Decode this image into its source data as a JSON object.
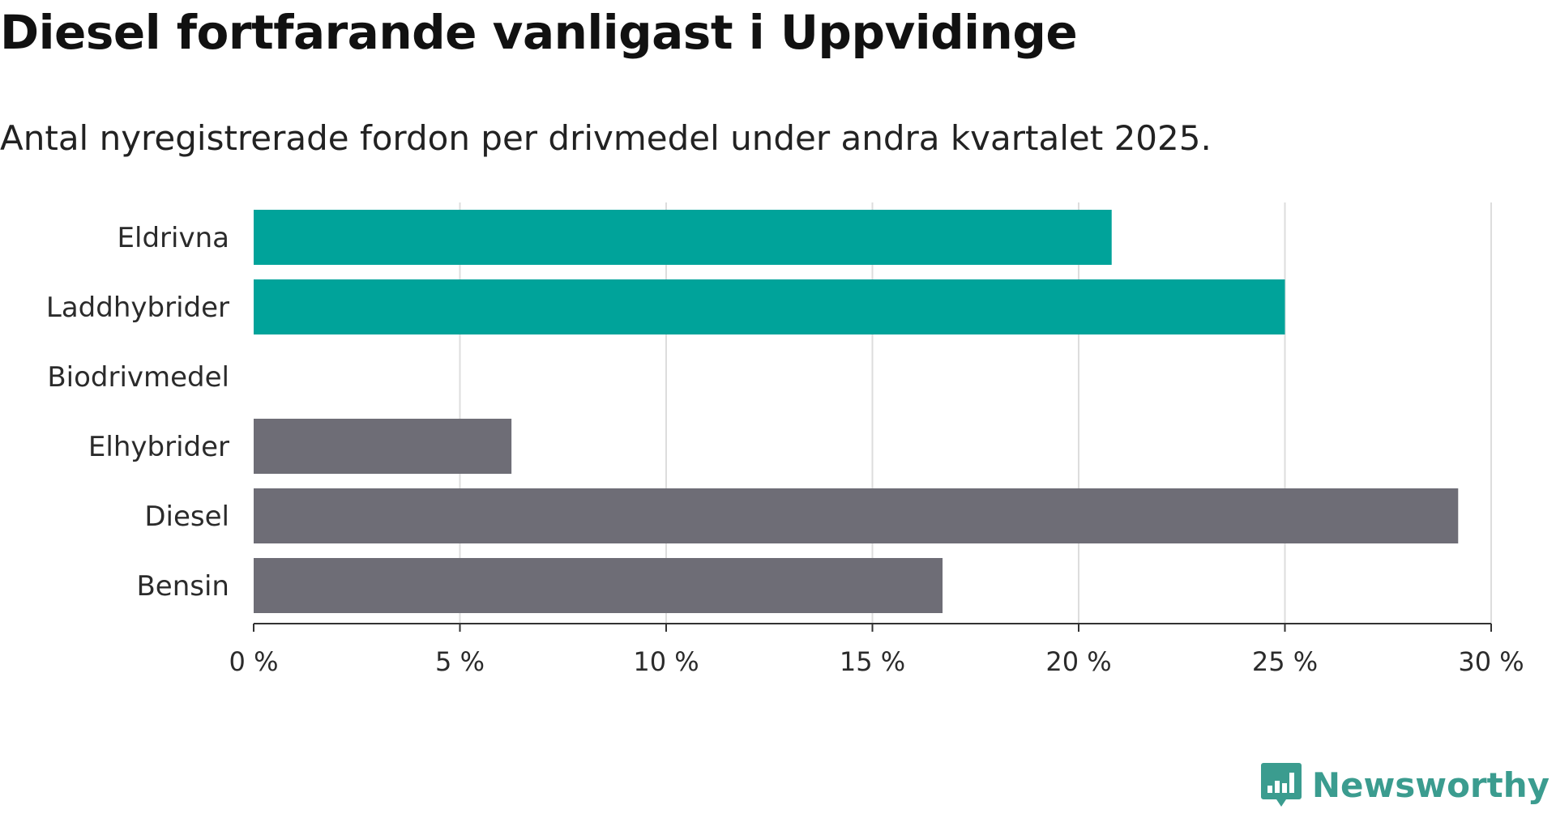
{
  "title": "Diesel fortfarande vanligast i Uppvidinge",
  "subtitle": "Antal nyregistrerade fordon per drivmedel under andra kvartalet 2025.",
  "logo": {
    "text": "Newsworthy",
    "icon": "bar-chart-speech-bubble-icon",
    "color": "#3b9c8f"
  },
  "chart_data": {
    "type": "bar",
    "orientation": "horizontal",
    "categories": [
      "Eldrivna",
      "Laddhybrider",
      "Biodrivmedel",
      "Elhybrider",
      "Diesel",
      "Bensin"
    ],
    "values": [
      20.8,
      25.0,
      0,
      6.25,
      29.2,
      16.7
    ],
    "colors": [
      "#00a39a",
      "#00a39a",
      "#00a39a",
      "#6e6d76",
      "#6e6d76",
      "#6e6d76"
    ],
    "xlim": [
      0,
      30
    ],
    "xticks": [
      0,
      5,
      10,
      15,
      20,
      25,
      30
    ],
    "xtick_labels": [
      "0 %",
      "5 %",
      "10 %",
      "15 %",
      "20 %",
      "25 %",
      "30 %"
    ],
    "grid": "vertical"
  }
}
